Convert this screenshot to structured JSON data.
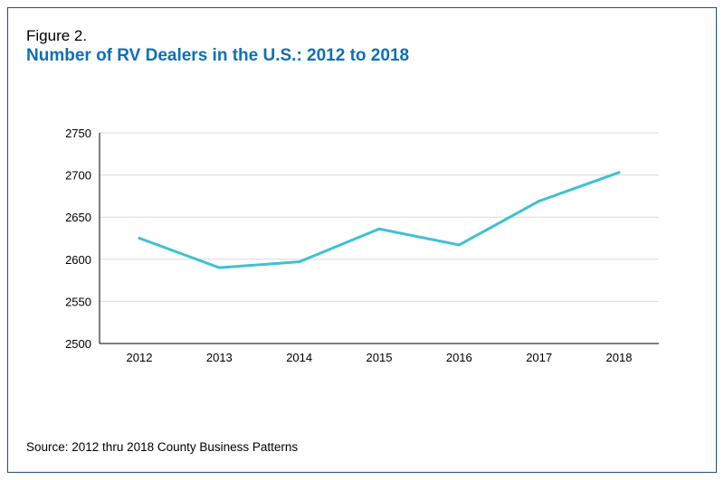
{
  "figure": {
    "label": "Figure 2.",
    "title": "Number of RV Dealers in the U.S.: 2012 to 2018",
    "source": "Source: 2012 thru 2018 County Business Patterns"
  },
  "colors": {
    "title": "#0e6fb5",
    "line": "#3ec1d3",
    "grid": "#d9d9d9",
    "axis": "#000000",
    "border": "#1f4e79"
  },
  "chart_data": {
    "type": "line",
    "title": "Number of RV Dealers in the U.S.: 2012 to 2018",
    "xlabel": "",
    "ylabel": "",
    "categories": [
      "2012",
      "2013",
      "2014",
      "2015",
      "2016",
      "2017",
      "2018"
    ],
    "series": [
      {
        "values": [
          2625,
          2590,
          2597,
          2636,
          2617,
          2669,
          2703
        ]
      }
    ],
    "ylim": [
      2500,
      2750
    ],
    "yticks": [
      2500,
      2550,
      2600,
      2650,
      2700,
      2750
    ],
    "grid": true,
    "legend": "none"
  }
}
